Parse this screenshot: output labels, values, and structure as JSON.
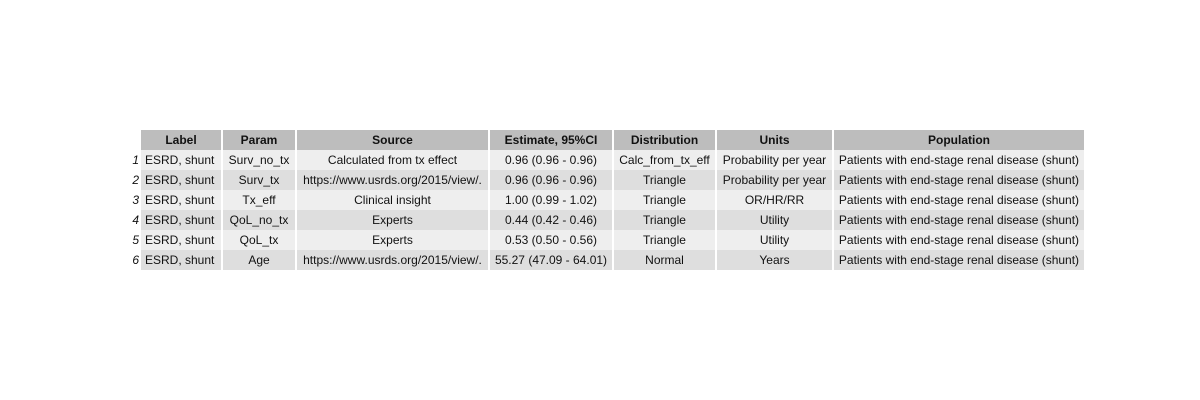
{
  "table": {
    "headers": {
      "label": "Label",
      "param": "Param",
      "source": "Source",
      "estimate": "Estimate, 95%CI",
      "distribution": "Distribution",
      "units": "Units",
      "population": "Population"
    },
    "rows": [
      {
        "num": "1",
        "label": "ESRD, shunt",
        "param": "Surv_no_tx",
        "source": "Calculated from tx effect",
        "estimate": "0.96 (0.96 - 0.96)",
        "distribution": "Calc_from_tx_eff",
        "units": "Probability per year",
        "population": "Patients with end-stage renal disease (shunt)"
      },
      {
        "num": "2",
        "label": "ESRD, shunt",
        "param": "Surv_tx",
        "source": "https://www.usrds.org/2015/view/.",
        "estimate": "0.96 (0.96 - 0.96)",
        "distribution": "Triangle",
        "units": "Probability per year",
        "population": "Patients with end-stage renal disease (shunt)"
      },
      {
        "num": "3",
        "label": "ESRD, shunt",
        "param": "Tx_eff",
        "source": "Clinical insight",
        "estimate": "1.00 (0.99 - 1.02)",
        "distribution": "Triangle",
        "units": "OR/HR/RR",
        "population": "Patients with end-stage renal disease (shunt)"
      },
      {
        "num": "4",
        "label": "ESRD, shunt",
        "param": "QoL_no_tx",
        "source": "Experts",
        "estimate": "0.44 (0.42 - 0.46)",
        "distribution": "Triangle",
        "units": "Utility",
        "population": "Patients with end-stage renal disease (shunt)"
      },
      {
        "num": "5",
        "label": "ESRD, shunt",
        "param": "QoL_tx",
        "source": "Experts",
        "estimate": "0.53 (0.50 - 0.56)",
        "distribution": "Triangle",
        "units": "Utility",
        "population": "Patients with end-stage renal disease (shunt)"
      },
      {
        "num": "6",
        "label": "ESRD, shunt",
        "param": "Age",
        "source": "https://www.usrds.org/2015/view/.",
        "estimate": "55.27 (47.09 - 64.01)",
        "distribution": "Normal",
        "units": "Years",
        "population": "Patients with end-stage renal disease (shunt)"
      }
    ]
  }
}
